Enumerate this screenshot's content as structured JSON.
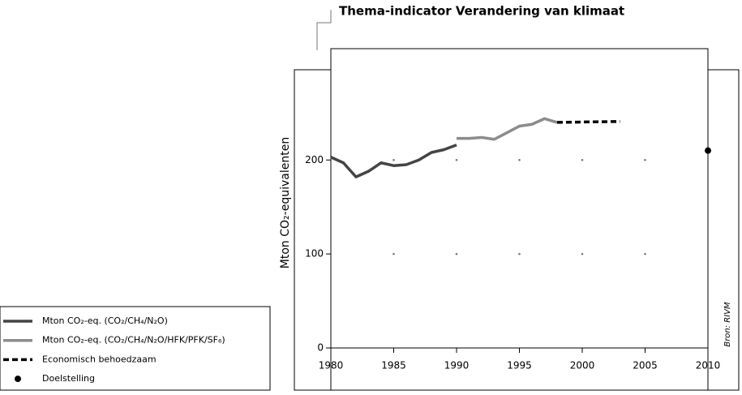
{
  "chart_data": {
    "type": "line",
    "title": "Thema-indicator Verandering van klimaat",
    "y_label": "Mton CO₂-equivalenten",
    "source": "Bron: RIVM",
    "xlim": [
      1980,
      2010
    ],
    "xticks": [
      1980,
      1985,
      1990,
      1995,
      2000,
      2005,
      2010
    ],
    "ylim": [
      0,
      315
    ],
    "yticks": [
      0,
      100,
      200
    ],
    "grid": "dots",
    "legend": "bottom-left",
    "series": [
      {
        "name": "Mton CO₂-eq. (CO₂/CH₄/N₂O)",
        "color": "#444444",
        "style": "solid",
        "x": [
          1980,
          1981,
          1982,
          1983,
          1984,
          1985,
          1986,
          1987,
          1988,
          1989,
          1990
        ],
        "values": [
          203,
          197,
          182,
          188,
          197,
          194,
          195,
          200,
          208,
          211,
          216
        ]
      },
      {
        "name": "Mton CO₂-eq. (CO₂/CH₄/N₂O/HFK/PFK/SF₆)",
        "color": "#8c8c8c",
        "style": "solid",
        "x": [
          1990,
          1991,
          1992,
          1993,
          1994,
          1995,
          1996,
          1997,
          1998
        ],
        "values": [
          223,
          223,
          224,
          222,
          229,
          236,
          238,
          244,
          240
        ]
      },
      {
        "name": "Economisch behoedzaam",
        "color": "#000000",
        "style": "dashed",
        "x": [
          1998,
          2003
        ],
        "values": [
          240,
          241
        ]
      },
      {
        "name": "Doelstelling",
        "color": "#000000",
        "style": "dot",
        "x": [
          2010
        ],
        "values": [
          210
        ]
      }
    ]
  }
}
